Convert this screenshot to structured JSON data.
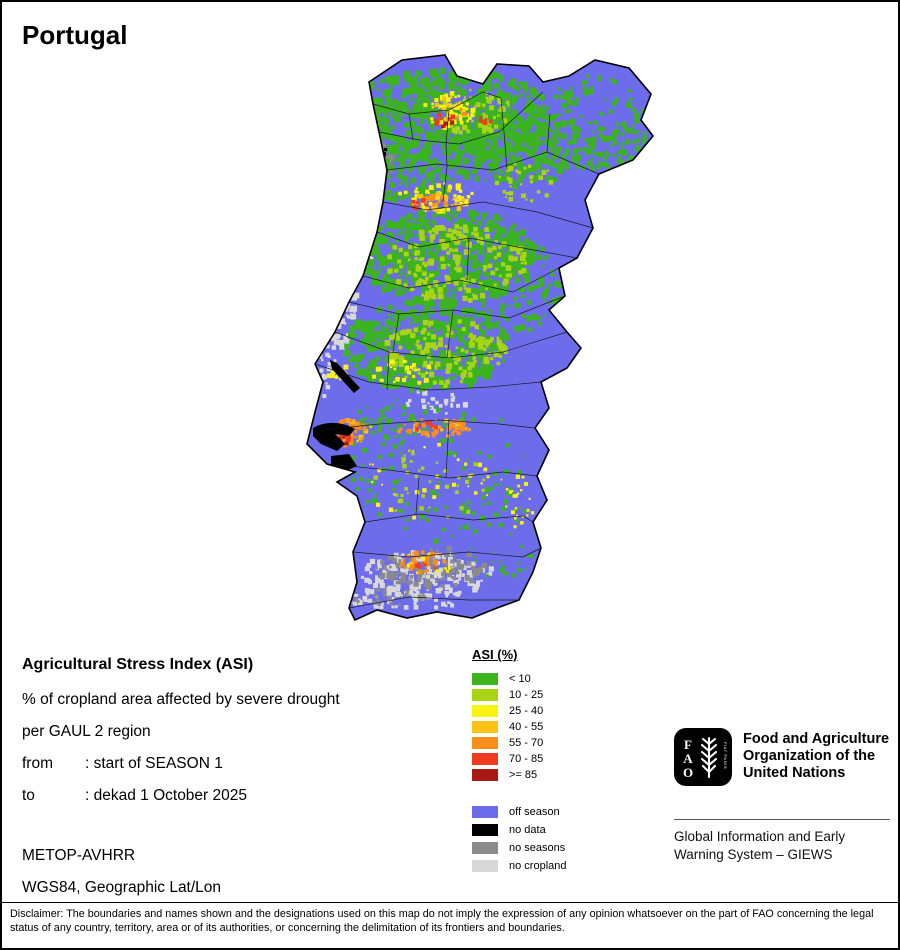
{
  "title": "Portugal",
  "info": {
    "heading": "Agricultural Stress Index (ASI)",
    "line1": "% of cropland area affected by severe drought",
    "line2": "per GAUL 2 region",
    "from_label": "from",
    "from_value": ": start of SEASON 1",
    "to_label": "to",
    "to_value": ": dekad 1 October 2025",
    "sensor": "METOP-AVHRR",
    "projection": "WGS84, Geographic Lat/Lon"
  },
  "legend": {
    "title": "ASI (%)",
    "classes": [
      {
        "label": "< 10",
        "color": "#3bb41e"
      },
      {
        "label": "10 - 25",
        "color": "#a8d414"
      },
      {
        "label": "25 - 40",
        "color": "#f9f312"
      },
      {
        "label": "40 - 55",
        "color": "#fcc218"
      },
      {
        "label": "55 - 70",
        "color": "#f98e1c"
      },
      {
        "label": "70 - 85",
        "color": "#f03b20"
      },
      {
        "label": ">= 85",
        "color": "#aa1a15"
      }
    ],
    "extra": [
      {
        "label": "off season",
        "color": "#6d6deb"
      },
      {
        "label": "no data",
        "color": "#000000"
      },
      {
        "label": "no seasons",
        "color": "#8a8a8a"
      },
      {
        "label": "no cropland",
        "color": "#d8d8d8"
      }
    ]
  },
  "fao": {
    "logo_letters": [
      "F",
      "A",
      "O"
    ],
    "motto": "FIAT PANIS",
    "org_lines": [
      "Food and Agriculture",
      "Organization of the",
      "United Nations"
    ],
    "giews_lines": [
      "Global Information and Early",
      "Warning System – GIEWS"
    ]
  },
  "disclaimer": "Disclaimer: The boundaries and names shown and the designations used on this map do not imply the expression of any opinion whatsoever on the part of FAO concerning the legal status of any country, territory, area or of its authorities, or concerning the delimitation of its frontiers and boundaries."
}
